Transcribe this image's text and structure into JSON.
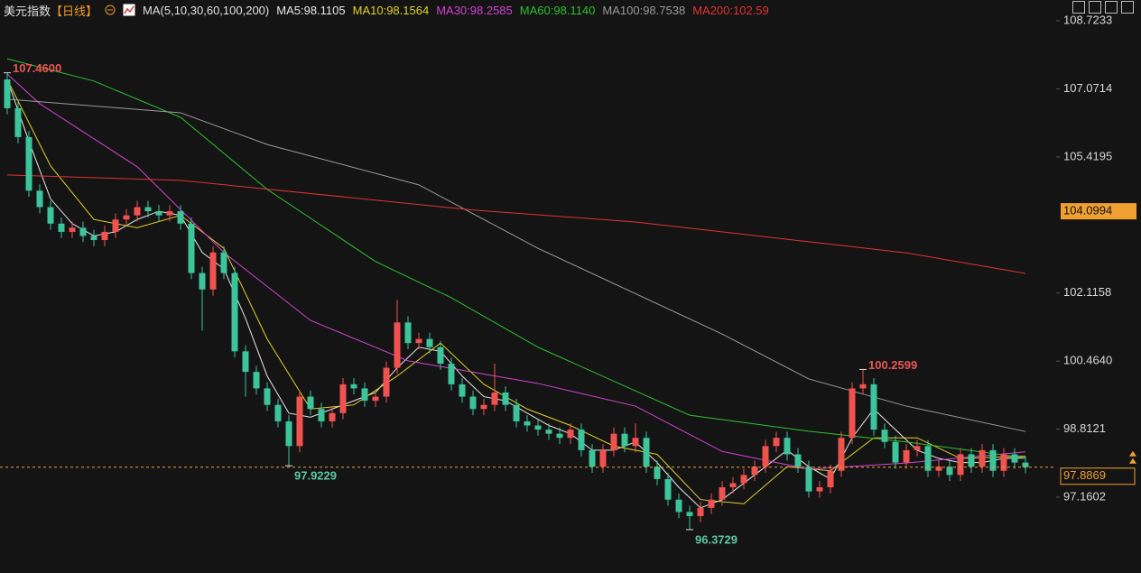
{
  "chart_data": {
    "type": "candlestick",
    "title": "美元指数",
    "period": "【日线】",
    "indicator": "MA(5,10,30,60,100,200)",
    "up_color": "#f0524f",
    "down_color": "#3cc49a",
    "open": [
      107.3,
      106.6,
      105.9,
      104.6,
      104.2,
      103.8,
      103.6,
      103.7,
      103.5,
      103.4,
      103.6,
      103.9,
      104.0,
      104.2,
      104.1,
      104.0,
      104.1,
      103.8,
      102.6,
      102.2,
      103.1,
      102.6,
      100.7,
      100.2,
      99.8,
      99.4,
      99.0,
      98.4,
      99.6,
      99.3,
      99.0,
      99.2,
      99.9,
      99.8,
      99.5,
      99.6,
      100.3,
      101.4,
      100.9,
      101.0,
      100.8,
      100.4,
      99.9,
      99.6,
      99.3,
      99.4,
      99.7,
      99.4,
      99.0,
      98.9,
      98.8,
      98.7,
      98.6,
      98.8,
      98.3,
      97.9,
      98.3,
      98.7,
      98.4,
      98.6,
      97.9,
      97.6,
      97.1,
      96.8,
      96.7,
      96.9,
      97.1,
      97.4,
      97.5,
      97.7,
      97.9,
      98.4,
      98.6,
      98.2,
      97.9,
      97.3,
      97.4,
      97.8,
      98.6,
      99.8,
      99.9,
      98.8,
      98.5,
      98.0,
      98.3,
      98.4,
      97.8,
      97.9,
      97.7,
      98.2,
      97.9,
      98.3,
      97.8,
      98.2,
      98.0
    ],
    "high": [
      107.46,
      106.75,
      106.05,
      104.75,
      104.35,
      103.95,
      103.85,
      103.85,
      103.65,
      103.75,
      104.05,
      104.15,
      104.35,
      104.35,
      104.25,
      104.25,
      104.25,
      103.95,
      102.75,
      103.25,
      103.25,
      102.75,
      100.85,
      100.35,
      99.95,
      99.55,
      99.15,
      99.75,
      99.75,
      99.45,
      99.35,
      100.05,
      100.05,
      99.95,
      99.75,
      100.45,
      101.95,
      101.55,
      101.15,
      101.15,
      100.95,
      100.55,
      100.05,
      99.75,
      99.55,
      100.4,
      99.85,
      99.55,
      99.15,
      99.05,
      98.95,
      98.85,
      98.95,
      98.95,
      98.45,
      98.45,
      98.85,
      98.85,
      98.95,
      98.75,
      98.05,
      97.75,
      97.25,
      96.95,
      97.05,
      97.25,
      97.55,
      97.65,
      97.85,
      98.05,
      98.55,
      98.75,
      98.75,
      98.35,
      98.05,
      97.55,
      97.95,
      98.75,
      99.95,
      100.2599,
      100.05,
      98.95,
      98.65,
      98.45,
      98.55,
      98.55,
      98.05,
      98.05,
      98.35,
      98.35,
      98.45,
      98.45,
      98.35,
      98.35,
      98.15
    ],
    "low": [
      106.45,
      105.75,
      104.45,
      104.05,
      103.65,
      103.45,
      103.45,
      103.35,
      103.25,
      103.25,
      103.45,
      103.75,
      103.85,
      103.95,
      103.85,
      103.85,
      103.65,
      102.45,
      101.2,
      102.05,
      102.45,
      100.55,
      99.6,
      99.65,
      99.25,
      98.85,
      97.9229,
      98.25,
      99.15,
      98.85,
      98.85,
      99.05,
      99.65,
      99.35,
      99.35,
      99.45,
      100.15,
      100.75,
      100.75,
      100.65,
      100.25,
      99.75,
      99.45,
      99.15,
      99.15,
      99.25,
      99.25,
      98.85,
      98.75,
      98.65,
      98.55,
      98.45,
      98.45,
      98.15,
      97.75,
      97.75,
      98.15,
      98.25,
      98.25,
      97.75,
      97.45,
      96.95,
      96.65,
      96.3729,
      96.55,
      96.75,
      96.95,
      97.25,
      97.35,
      97.55,
      97.75,
      98.25,
      98.05,
      97.75,
      97.15,
      97.15,
      97.25,
      97.65,
      98.45,
      99.65,
      98.65,
      98.35,
      97.85,
      97.85,
      98.15,
      97.65,
      97.65,
      97.55,
      97.55,
      97.75,
      97.75,
      97.65,
      97.65,
      97.85,
      97.74
    ],
    "close": [
      106.6,
      105.9,
      104.6,
      104.2,
      103.8,
      103.6,
      103.7,
      103.5,
      103.4,
      103.6,
      103.9,
      104.0,
      104.2,
      104.1,
      104.0,
      104.1,
      103.8,
      102.6,
      102.2,
      103.1,
      102.6,
      100.7,
      100.2,
      99.8,
      99.4,
      99.0,
      98.4,
      99.6,
      99.3,
      99.0,
      99.2,
      99.9,
      99.8,
      99.5,
      99.6,
      100.3,
      101.4,
      100.9,
      101.0,
      100.8,
      100.4,
      99.9,
      99.6,
      99.3,
      99.4,
      99.7,
      99.4,
      99.0,
      98.9,
      98.8,
      98.7,
      98.6,
      98.8,
      98.3,
      97.9,
      98.3,
      98.7,
      98.4,
      98.6,
      97.9,
      97.6,
      97.1,
      96.8,
      96.7,
      96.9,
      97.1,
      97.4,
      97.5,
      97.7,
      97.9,
      98.4,
      98.6,
      98.2,
      97.9,
      97.3,
      97.4,
      97.8,
      98.6,
      99.8,
      99.9,
      98.8,
      98.5,
      98.0,
      98.3,
      98.4,
      97.8,
      97.9,
      97.7,
      98.2,
      97.9,
      98.3,
      97.8,
      98.2,
      98.0,
      97.8869
    ],
    "series": [
      {
        "name": "MA5:98.1105",
        "color": "#e8e8e8",
        "x": [
          0,
          2,
          4,
          6,
          8,
          10,
          12,
          14,
          16,
          18,
          20,
          22,
          24,
          26,
          28,
          30,
          32,
          34,
          36,
          38,
          40,
          42,
          44,
          46,
          48,
          50,
          52,
          54,
          56,
          58,
          60,
          62,
          64,
          66,
          68,
          70,
          72,
          74,
          76,
          78,
          80,
          82,
          84,
          86,
          88,
          90,
          92,
          94
        ],
        "values": [
          107.3,
          105.8,
          104.4,
          103.8,
          103.5,
          103.6,
          103.9,
          104.1,
          104.0,
          103.1,
          102.7,
          101.5,
          100.1,
          99.2,
          99.1,
          99.3,
          99.5,
          99.7,
          100.3,
          100.8,
          100.7,
          100.1,
          99.6,
          99.5,
          99.2,
          98.9,
          98.7,
          98.3,
          98.3,
          98.5,
          98.0,
          97.4,
          96.9,
          97.1,
          97.5,
          97.9,
          98.3,
          97.9,
          97.6,
          98.6,
          99.3,
          98.8,
          98.3,
          98.1,
          98.0,
          98.0,
          98.1,
          98.1105
        ]
      },
      {
        "name": "MA10:98.1564",
        "color": "#e3d22a",
        "x": [
          0,
          4,
          8,
          12,
          16,
          20,
          24,
          28,
          32,
          36,
          40,
          44,
          48,
          52,
          56,
          60,
          64,
          68,
          72,
          76,
          80,
          84,
          88,
          94
        ],
        "values": [
          107.3,
          105.2,
          103.9,
          103.7,
          104.0,
          103.2,
          101.0,
          99.3,
          99.4,
          100.1,
          100.9,
          99.9,
          99.3,
          98.9,
          98.4,
          98.2,
          97.1,
          97.0,
          97.9,
          97.8,
          98.6,
          98.6,
          98.1,
          98.1564
        ]
      },
      {
        "name": "MA30:98.2585",
        "color": "#d243d2",
        "x": [
          0,
          3,
          12,
          20,
          28,
          37,
          49,
          58,
          66,
          74,
          83,
          94
        ],
        "values": [
          107.43,
          106.71,
          105.18,
          103.1,
          101.45,
          100.47,
          99.92,
          99.37,
          98.27,
          97.84,
          97.99,
          98.2585
        ]
      },
      {
        "name": "MA60:98.1140",
        "color": "#2fc12f",
        "x": [
          0,
          8,
          16,
          24,
          34,
          41,
          49,
          63,
          74,
          83,
          94
        ],
        "values": [
          107.8,
          107.26,
          106.38,
          104.63,
          102.88,
          102.0,
          100.8,
          99.15,
          98.76,
          98.5,
          98.114
        ]
      },
      {
        "name": "MA100:98.7538",
        "color": "#9a9a9a",
        "x": [
          0,
          16,
          24,
          38,
          49,
          66,
          74,
          83,
          94
        ],
        "values": [
          106.82,
          106.49,
          105.72,
          104.74,
          103.2,
          101.12,
          100.03,
          99.37,
          98.7538
        ]
      },
      {
        "name": "MA200:102.59",
        "color": "#e03434",
        "x": [
          0,
          16,
          43,
          58,
          74,
          83,
          94
        ],
        "values": [
          104.98,
          104.85,
          104.13,
          103.84,
          103.36,
          103.09,
          102.59
        ]
      }
    ],
    "ylim": [
      95.648,
      109.227
    ],
    "yticks": [
      108.7233,
      107.0714,
      105.4195,
      102.1158,
      {
        "value": 100.464,
        "label": "100.4640"
      },
      98.8121,
      97.1602
    ],
    "marker_price": 104.0994,
    "last_price": 97.8869,
    "extremes": [
      {
        "value": 107.46,
        "label": "107.4600"
      },
      {
        "value": 97.9229,
        "label": "97.9229"
      },
      {
        "value": 96.3729,
        "label": "96.3729"
      },
      {
        "value": 100.2599,
        "label": "100.2599"
      }
    ]
  }
}
